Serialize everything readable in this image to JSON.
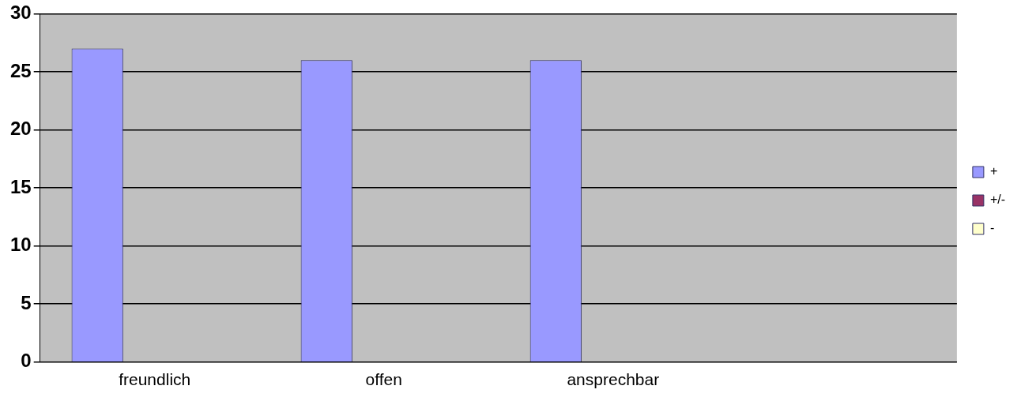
{
  "chart_data": {
    "type": "bar",
    "categories": [
      "freundlich",
      "offen",
      "ansprechbar",
      null
    ],
    "series": [
      {
        "name": "+",
        "color": "#9999ff",
        "values": [
          27,
          26,
          26,
          null
        ]
      },
      {
        "name": "+/-",
        "color": "#993366",
        "values": [
          0,
          0,
          0,
          null
        ]
      },
      {
        "name": "-",
        "color": "#ffffcc",
        "values": [
          0,
          0,
          0,
          null
        ]
      }
    ],
    "ylim": [
      0,
      30
    ],
    "yticks": [
      0,
      5,
      10,
      15,
      20,
      25,
      30
    ],
    "grid": "y",
    "legend": "right"
  }
}
